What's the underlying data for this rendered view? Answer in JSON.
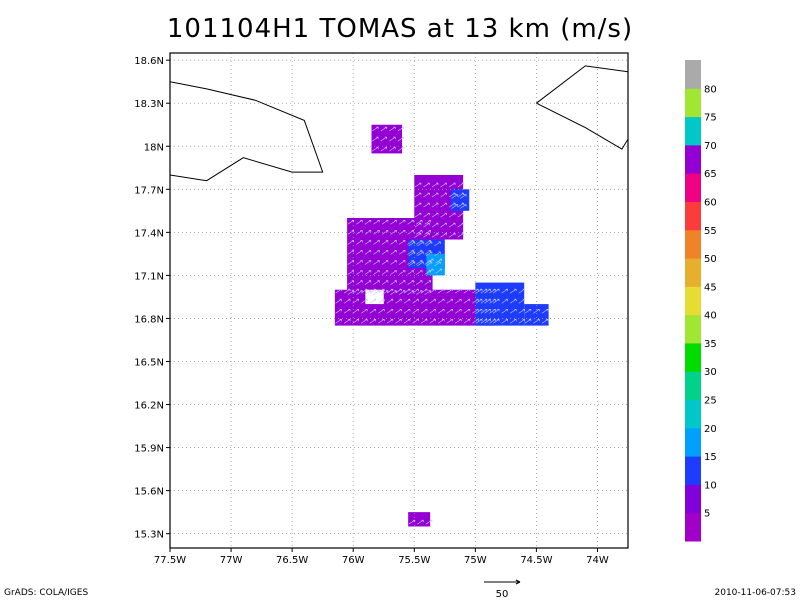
{
  "title": "101104H1 TOMAS at 13 km (m/s)",
  "map": {
    "lon_range": [
      -77.5,
      -73.75
    ],
    "lat_range": [
      15.2,
      18.65
    ],
    "lon_ticks": [
      {
        "v": -77.5,
        "label": "77.5W"
      },
      {
        "v": -77.0,
        "label": "77W"
      },
      {
        "v": -76.5,
        "label": "76.5W"
      },
      {
        "v": -76.0,
        "label": "76W"
      },
      {
        "v": -75.5,
        "label": "75.5W"
      },
      {
        "v": -75.0,
        "label": "75W"
      },
      {
        "v": -74.5,
        "label": "74.5W"
      },
      {
        "v": -74.0,
        "label": "74W"
      }
    ],
    "lat_ticks": [
      {
        "v": 18.6,
        "label": "18.6N"
      },
      {
        "v": 18.3,
        "label": "18.3N"
      },
      {
        "v": 18.0,
        "label": "18N"
      },
      {
        "v": 17.7,
        "label": "17.7N"
      },
      {
        "v": 17.4,
        "label": "17.4N"
      },
      {
        "v": 17.1,
        "label": "17.1N"
      },
      {
        "v": 16.8,
        "label": "16.8N"
      },
      {
        "v": 16.5,
        "label": "16.5N"
      },
      {
        "v": 16.2,
        "label": "16.2N"
      },
      {
        "v": 15.9,
        "label": "15.9N"
      },
      {
        "v": 15.6,
        "label": "15.6N"
      },
      {
        "v": 15.3,
        "label": "15.3N"
      }
    ],
    "grid": true,
    "coastlines": [
      [
        [
          -77.5,
          18.45
        ],
        [
          -77.2,
          18.4
        ],
        [
          -76.8,
          18.32
        ],
        [
          -76.4,
          18.18
        ],
        [
          -76.25,
          17.82
        ],
        [
          -76.5,
          17.82
        ],
        [
          -76.9,
          17.92
        ],
        [
          -77.2,
          17.76
        ],
        [
          -77.5,
          17.8
        ]
      ],
      [
        [
          -74.5,
          18.3
        ],
        [
          -74.1,
          18.56
        ],
        [
          -73.75,
          18.52
        ]
      ],
      [
        [
          -74.5,
          18.3
        ],
        [
          -74.1,
          18.13
        ],
        [
          -73.8,
          17.98
        ],
        [
          -73.75,
          18.05
        ]
      ]
    ],
    "wind_region": {
      "color_main": "#9400d3",
      "color_strong": "#1e3cff",
      "color_peak": "#00a0ff",
      "patches": [
        {
          "lon": [
            -75.85,
            -75.6
          ],
          "lat": [
            17.95,
            18.15
          ],
          "level": "main"
        },
        {
          "lon": [
            -75.55,
            -75.37
          ],
          "lat": [
            15.35,
            15.45
          ],
          "level": "main"
        },
        {
          "lon": [
            -75.5,
            -75.1
          ],
          "lat": [
            17.35,
            17.8
          ],
          "level": "main"
        },
        {
          "lon": [
            -76.05,
            -75.35
          ],
          "lat": [
            16.95,
            17.5
          ],
          "level": "main"
        },
        {
          "lon": [
            -76.15,
            -74.85
          ],
          "lat": [
            16.75,
            17.0
          ],
          "level": "main"
        },
        {
          "lon": [
            -75.2,
            -75.05
          ],
          "lat": [
            17.55,
            17.7
          ],
          "level": "strong"
        },
        {
          "lon": [
            -75.55,
            -75.25
          ],
          "lat": [
            17.15,
            17.35
          ],
          "level": "strong"
        },
        {
          "lon": [
            -75.0,
            -74.6
          ],
          "lat": [
            16.75,
            17.05
          ],
          "level": "strong"
        },
        {
          "lon": [
            -74.6,
            -74.4
          ],
          "lat": [
            16.75,
            16.9
          ],
          "level": "strong"
        },
        {
          "lon": [
            -75.4,
            -75.25
          ],
          "lat": [
            17.1,
            17.25
          ],
          "level": "peak"
        }
      ],
      "hole": {
        "lon": [
          -75.9,
          -75.75
        ],
        "lat": [
          16.9,
          17.0
        ]
      }
    }
  },
  "colorbar": {
    "levels": [
      "5",
      "10",
      "15",
      "20",
      "25",
      "30",
      "35",
      "40",
      "45",
      "50",
      "55",
      "60",
      "65",
      "70",
      "75",
      "80"
    ],
    "colors": [
      "#a000c8",
      "#8200dc",
      "#1e3cff",
      "#00a0ff",
      "#00c8c8",
      "#00d28c",
      "#00dc00",
      "#a0e632",
      "#e6dc32",
      "#e6af2d",
      "#f08228",
      "#fa3c3c",
      "#f00082",
      "#9400d3",
      "#00c8c8",
      "#a0e632",
      "#aaaaaa"
    ]
  },
  "vector_scale": {
    "label": "50"
  },
  "footer": {
    "left": "GrADS: COLA/IGES",
    "right": "2010-11-06-07:53"
  }
}
